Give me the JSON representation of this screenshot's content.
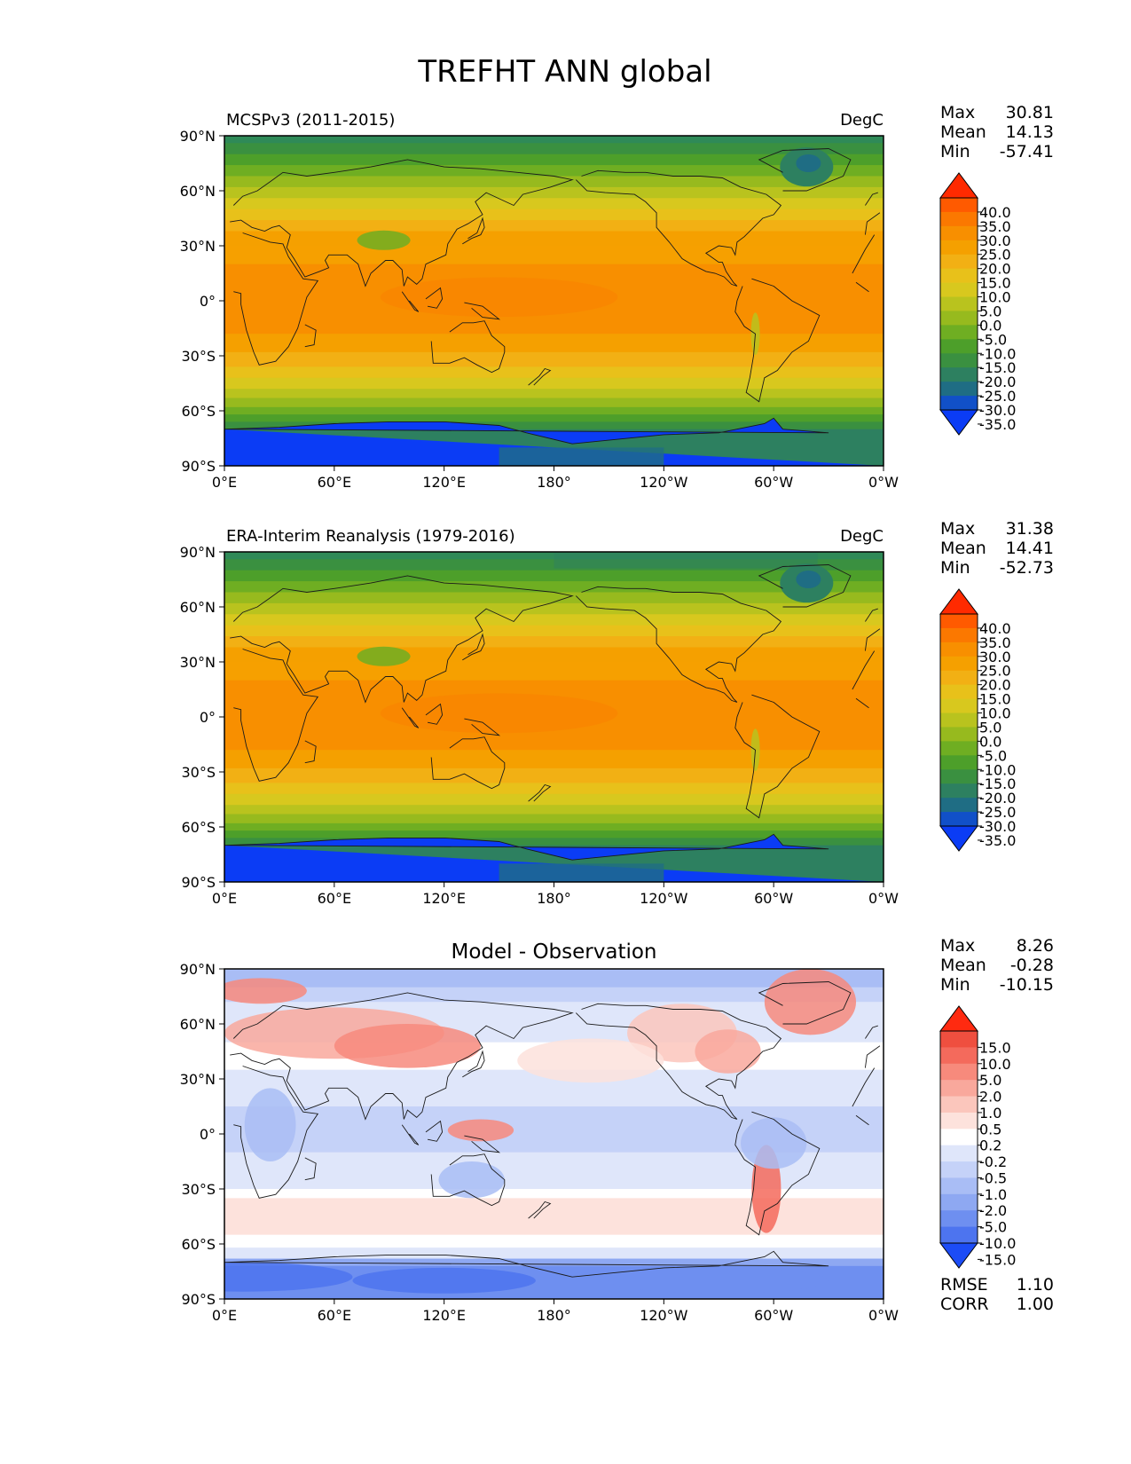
{
  "figure_title": "TREFHT ANN global",
  "chart_data": [
    {
      "type": "heatmap",
      "title_left": "MCSPv3 (2011-2015)",
      "title_right": "DegC",
      "stats": [
        {
          "label": "Max",
          "value": "30.81"
        },
        {
          "label": "Mean",
          "value": "14.13"
        },
        {
          "label": "Min",
          "value": "-57.41"
        }
      ],
      "colorbar": {
        "ticks": [
          "40.0",
          "35.0",
          "30.0",
          "25.0",
          "20.0",
          "15.0",
          "10.0",
          "5.0",
          "0.0",
          "-5.0",
          "-10.0",
          "-15.0",
          "-20.0",
          "-25.0",
          "-30.0",
          "-35.0"
        ],
        "colors": [
          "#ff2a00",
          "#ff5a00",
          "#fb7800",
          "#f88f00",
          "#f5a000",
          "#f2b014",
          "#e8c11a",
          "#d8c81e",
          "#b9c31e",
          "#97ba1e",
          "#6fae22",
          "#4d9f2a",
          "#3a9040",
          "#2d8060",
          "#1f6d84",
          "#1150c8",
          "#0b3cf5"
        ],
        "extend": "both"
      },
      "xticks": [
        "0°E",
        "60°E",
        "120°E",
        "180°",
        "120°W",
        "60°W",
        "0°W"
      ],
      "yticks": [
        "90°N",
        "60°N",
        "30°N",
        "0°",
        "30°S",
        "60°S",
        "90°S"
      ],
      "lon_range": [
        0,
        360
      ],
      "lat_range": [
        -90,
        90
      ]
    },
    {
      "type": "heatmap",
      "title_left": "ERA-Interim Reanalysis (1979-2016)",
      "title_right": "DegC",
      "stats": [
        {
          "label": "Max",
          "value": "31.38"
        },
        {
          "label": "Mean",
          "value": "14.41"
        },
        {
          "label": "Min",
          "value": "-52.73"
        }
      ],
      "colorbar": {
        "ticks": [
          "40.0",
          "35.0",
          "30.0",
          "25.0",
          "20.0",
          "15.0",
          "10.0",
          "5.0",
          "0.0",
          "-5.0",
          "-10.0",
          "-15.0",
          "-20.0",
          "-25.0",
          "-30.0",
          "-35.0"
        ],
        "colors": [
          "#ff2a00",
          "#ff5a00",
          "#fb7800",
          "#f88f00",
          "#f5a000",
          "#f2b014",
          "#e8c11a",
          "#d8c81e",
          "#b9c31e",
          "#97ba1e",
          "#6fae22",
          "#4d9f2a",
          "#3a9040",
          "#2d8060",
          "#1f6d84",
          "#1150c8",
          "#0b3cf5"
        ],
        "extend": "both"
      },
      "xticks": [
        "0°E",
        "60°E",
        "120°E",
        "180°",
        "120°W",
        "60°W",
        "0°W"
      ],
      "yticks": [
        "90°N",
        "60°N",
        "30°N",
        "0°",
        "30°S",
        "60°S",
        "90°S"
      ],
      "lon_range": [
        0,
        360
      ],
      "lat_range": [
        -90,
        90
      ]
    },
    {
      "type": "heatmap",
      "title_center": "Model - Observation",
      "stats": [
        {
          "label": "Max",
          "value": "8.26"
        },
        {
          "label": "Mean",
          "value": "-0.28"
        },
        {
          "label": "Min",
          "value": "-10.15"
        }
      ],
      "metrics": [
        {
          "label": "RMSE",
          "value": "1.10"
        },
        {
          "label": "CORR",
          "value": "1.00"
        }
      ],
      "colorbar": {
        "ticks": [
          "15.0",
          "10.0",
          "5.0",
          "2.0",
          "1.0",
          "0.5",
          "0.2",
          "-0.2",
          "-0.5",
          "-1.0",
          "-2.0",
          "-5.0",
          "-10.0",
          "-15.0"
        ],
        "colors": [
          "#ff2a10",
          "#ef4f3f",
          "#f46a5c",
          "#f78a7c",
          "#f9a89c",
          "#fbc6bc",
          "#fde2dc",
          "#ffffff",
          "#dfe6fa",
          "#c5d2f8",
          "#a9bdf5",
          "#8ea8f2",
          "#6e8ff0",
          "#4d74ef",
          "#1c4cf6"
        ],
        "extend": "both"
      },
      "xticks": [
        "0°E",
        "60°E",
        "120°E",
        "180°",
        "120°W",
        "60°W",
        "0°W"
      ],
      "yticks": [
        "90°N",
        "60°N",
        "30°N",
        "0°",
        "30°S",
        "60°S",
        "90°S"
      ],
      "lon_range": [
        0,
        360
      ],
      "lat_range": [
        -90,
        90
      ]
    }
  ]
}
